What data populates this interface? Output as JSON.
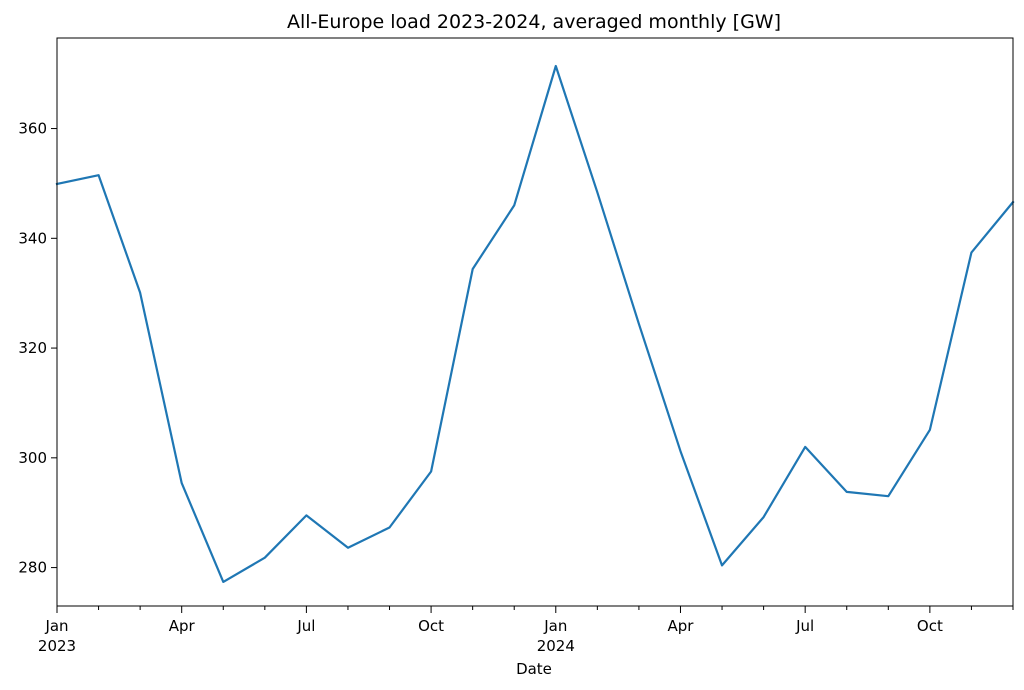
{
  "chart_data": {
    "type": "line",
    "title": "All-Europe load 2023-2024, averaged monthly [GW]",
    "xlabel": "Date",
    "ylabel": "",
    "x": [
      "2023-01",
      "2023-02",
      "2023-03",
      "2023-04",
      "2023-05",
      "2023-06",
      "2023-07",
      "2023-08",
      "2023-09",
      "2023-10",
      "2023-11",
      "2023-12",
      "2024-01",
      "2024-02",
      "2024-03",
      "2024-04",
      "2024-05",
      "2024-06",
      "2024-07",
      "2024-08",
      "2024-09",
      "2024-10",
      "2024-11",
      "2024-12"
    ],
    "series": [
      {
        "color": "#1f77b4",
        "values": [
          349.9,
          351.5,
          330.1,
          295.4,
          277.4,
          281.8,
          289.5,
          283.6,
          287.3,
          297.5,
          334.4,
          346.0,
          371.4,
          348.4,
          324.4,
          301.2,
          280.4,
          289.2,
          302.0,
          293.8,
          293.0,
          305.1,
          337.4,
          346.6
        ]
      }
    ],
    "ylim": [
      273.0,
      376.5
    ],
    "yticks": [
      280,
      300,
      320,
      340,
      360
    ],
    "xticks": [
      {
        "month": "2023-01",
        "label": "Jan",
        "year_label": "2023"
      },
      {
        "month": "2023-04",
        "label": "Apr",
        "year_label": ""
      },
      {
        "month": "2023-07",
        "label": "Jul",
        "year_label": ""
      },
      {
        "month": "2023-10",
        "label": "Oct",
        "year_label": ""
      },
      {
        "month": "2024-01",
        "label": "Jan",
        "year_label": "2024"
      },
      {
        "month": "2024-04",
        "label": "Apr",
        "year_label": ""
      },
      {
        "month": "2024-07",
        "label": "Jul",
        "year_label": ""
      },
      {
        "month": "2024-10",
        "label": "Oct",
        "year_label": ""
      }
    ],
    "grid": false,
    "legend": "none"
  }
}
